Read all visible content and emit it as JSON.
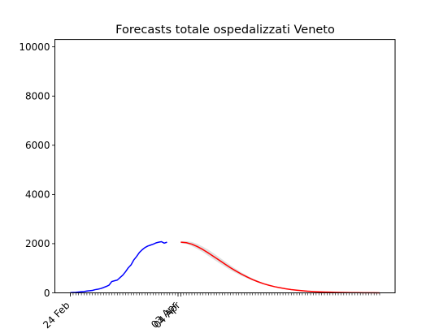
{
  "chart_data": {
    "type": "line",
    "title": "Forecasts totale ospedalizzati Veneto",
    "xlabel": "",
    "ylabel": "",
    "ylim": [
      0,
      10300
    ],
    "yticks": [
      0,
      2000,
      4000,
      6000,
      8000,
      10000
    ],
    "x_date_labels": [
      "24 Feb",
      "03 Apr",
      "04 Apr"
    ],
    "grid": false,
    "series": [
      {
        "color": "#0000ff",
        "x": [
          "24 Feb",
          "25 Feb",
          "26 Feb",
          "27 Feb",
          "28 Feb",
          "29 Feb",
          "01 Mar",
          "02 Mar",
          "03 Mar",
          "04 Mar",
          "05 Mar",
          "06 Mar",
          "07 Mar",
          "08 Mar",
          "09 Mar",
          "10 Mar",
          "11 Mar",
          "12 Mar",
          "13 Mar",
          "14 Mar",
          "15 Mar",
          "16 Mar",
          "17 Mar",
          "18 Mar",
          "19 Mar",
          "20 Mar",
          "21 Mar",
          "22 Mar",
          "23 Mar",
          "24 Mar",
          "25 Mar",
          "26 Mar",
          "27 Mar",
          "28 Mar",
          "29 Mar",
          "30 Mar",
          "31 Mar",
          "01 Apr",
          "02 Apr",
          "03 Apr"
        ],
        "values": [
          10,
          15,
          20,
          35,
          45,
          55,
          75,
          85,
          100,
          130,
          150,
          175,
          215,
          260,
          310,
          460,
          490,
          520,
          620,
          720,
          860,
          1020,
          1140,
          1340,
          1480,
          1640,
          1750,
          1840,
          1900,
          1940,
          1980,
          2030,
          2060,
          2080,
          2020,
          2060,
          null,
          null,
          null,
          null
        ]
      },
      {
        "color": "#ff0000",
        "x": [
          "04 Apr",
          "06 Apr",
          "08 Apr",
          "10 Apr",
          "12 Apr",
          "14 Apr",
          "16 Apr",
          "18 Apr",
          "20 Apr",
          "22 Apr",
          "24 Apr",
          "26 Apr",
          "28 Apr",
          "30 Apr",
          "02 May",
          "04 May",
          "06 May",
          "08 May",
          "10 May",
          "12 May",
          "14 May",
          "16 May",
          "18 May",
          "20 May",
          "22 May",
          "24 May",
          "26 May",
          "28 May",
          "30 May",
          "01 Jun",
          "03 Jun",
          "05 Jun",
          "07 Jun",
          "09 Jun",
          "11 Jun",
          "13 Jun",
          "15 Jun"
        ],
        "values": [
          2060,
          2040,
          1980,
          1880,
          1760,
          1620,
          1470,
          1320,
          1170,
          1020,
          885,
          760,
          645,
          540,
          450,
          370,
          305,
          250,
          205,
          165,
          132,
          106,
          85,
          68,
          54,
          43,
          34,
          27,
          21,
          16,
          12,
          9,
          7,
          5,
          4,
          3,
          2
        ]
      }
    ],
    "uncertainty_band": {
      "color": "#cccccc",
      "upper": [
        2100,
        2100,
        2070,
        1990,
        1880,
        1750,
        1600,
        1440,
        1280,
        1120,
        970,
        830,
        700,
        585,
        485,
        400,
        330,
        270,
        220,
        178,
        142,
        114,
        91,
        72,
        57,
        45,
        35,
        28,
        22,
        17,
        13,
        10,
        7,
        5,
        4,
        3,
        2
      ],
      "lower": [
        2020,
        1990,
        1900,
        1780,
        1650,
        1500,
        1350,
        1200,
        1060,
        920,
        800,
        690,
        590,
        500,
        415,
        345,
        285,
        233,
        190,
        153,
        122,
        98,
        79,
        63,
        50,
        40,
        32,
        25,
        19,
        15,
        11,
        8,
        6,
        4,
        3,
        2,
        1
      ]
    }
  }
}
